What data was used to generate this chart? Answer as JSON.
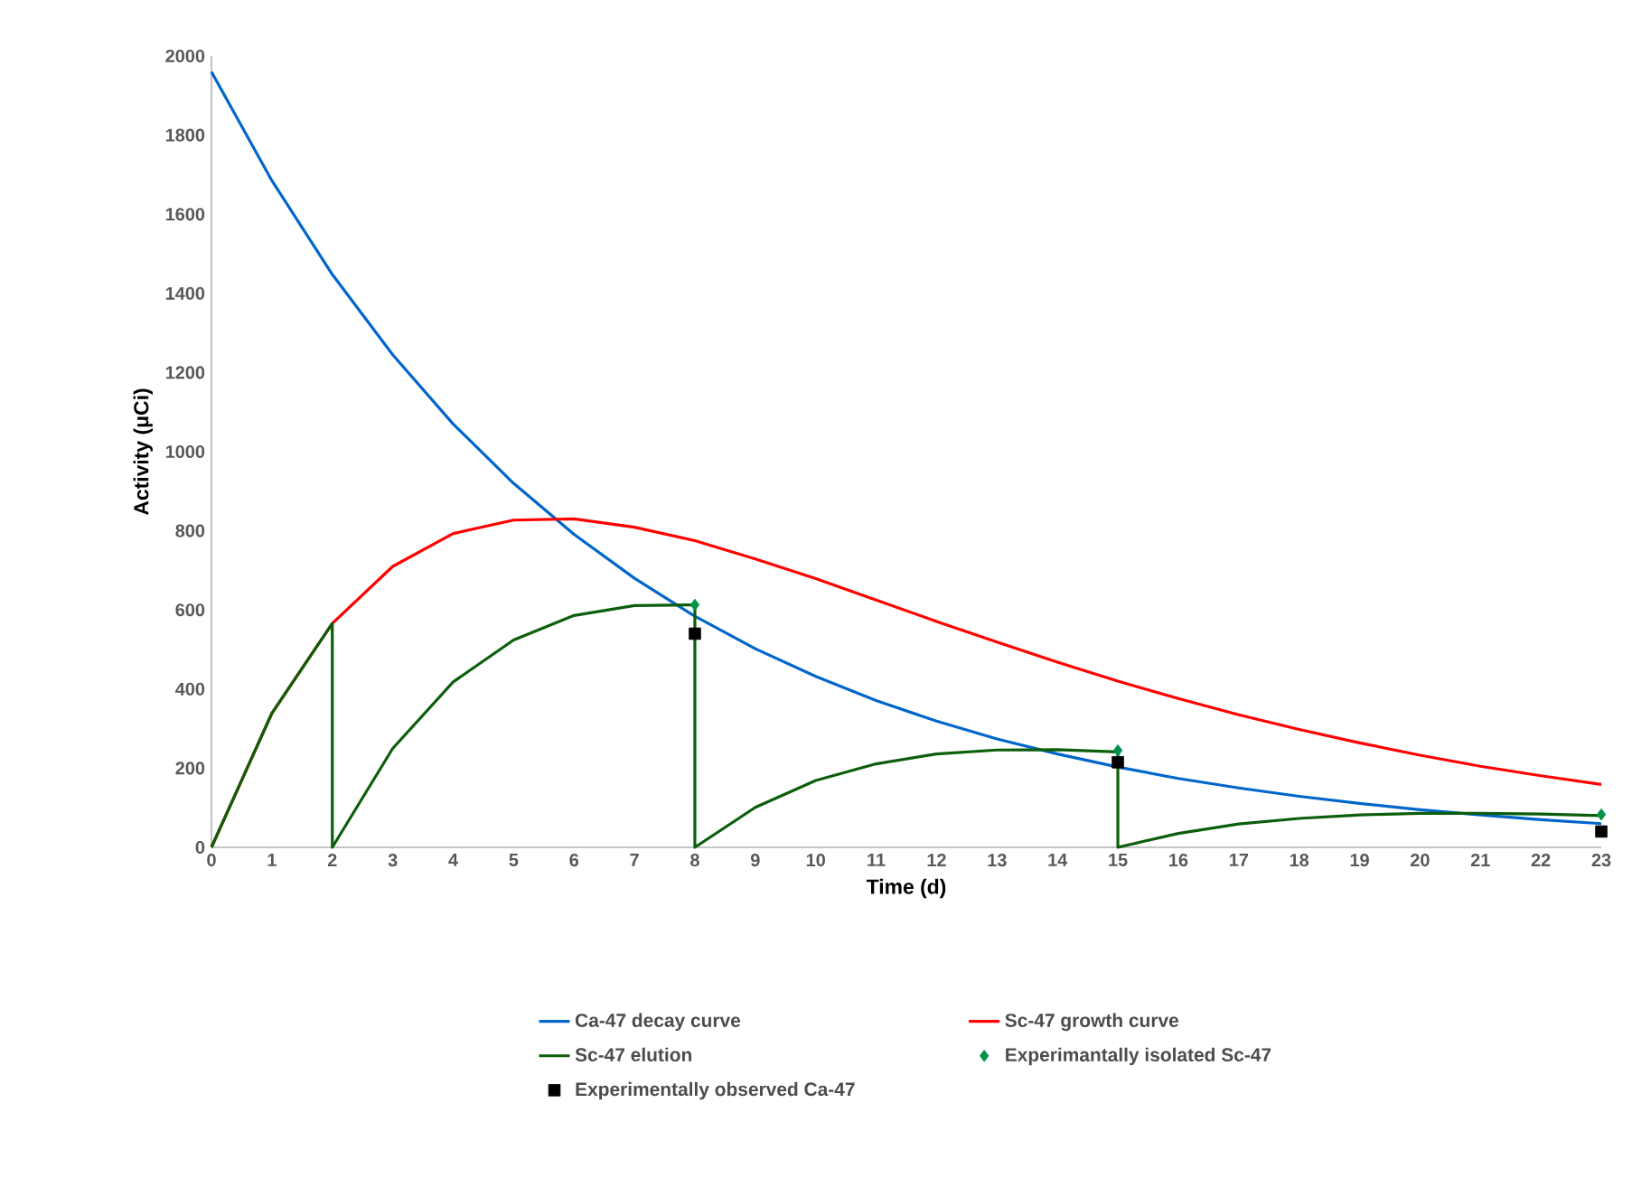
{
  "chart_data": {
    "type": "line",
    "xlabel": "Time (d)",
    "ylabel": "Activity (μCi)",
    "xlim": [
      0,
      23
    ],
    "xticks": [
      0,
      1,
      2,
      3,
      4,
      5,
      6,
      7,
      8,
      9,
      10,
      11,
      12,
      13,
      14,
      15,
      16,
      17,
      18,
      19,
      20,
      21,
      22,
      23
    ],
    "ylim": [
      0,
      2000
    ],
    "yticks": [
      0,
      200,
      400,
      600,
      800,
      1000,
      1200,
      1400,
      1600,
      1800,
      2000
    ],
    "legend": "bottom",
    "grid": false,
    "series": [
      {
        "name": "Ca-47 decay curve",
        "color": "#0066cc",
        "marker": "none",
        "line_style": "solid",
        "x": [
          0,
          1,
          2,
          3,
          4,
          5,
          6,
          7,
          8,
          9,
          10,
          11,
          12,
          13,
          14,
          15,
          16,
          17,
          18,
          19,
          20,
          21,
          22,
          23
        ],
        "values": [
          1960,
          1685,
          1448,
          1245,
          1070,
          920,
          791,
          680,
          584,
          502,
          432,
          371,
          319,
          274,
          236,
          203,
          174,
          150,
          129,
          111,
          95,
          82,
          70,
          60
        ]
      },
      {
        "name": "Sc-47 growth curve",
        "color": "#ff0000",
        "marker": "none",
        "line_style": "solid",
        "x": [
          0,
          1,
          2,
          3,
          4,
          5,
          6,
          7,
          8,
          9,
          10,
          11,
          12,
          13,
          14,
          15,
          16,
          17,
          18,
          19,
          20,
          21,
          22,
          23
        ],
        "values": [
          0,
          339,
          566,
          710,
          793,
          827,
          830,
          809,
          775,
          729,
          679,
          625,
          571,
          519,
          468,
          420,
          376,
          335,
          298,
          264,
          233,
          205,
          181,
          159
        ]
      },
      {
        "name": "Sc-47 elution",
        "color": "#0b5e0b",
        "marker": "none",
        "line_style": "solid",
        "x": [
          0,
          1,
          2,
          2,
          3,
          4,
          5,
          6,
          7,
          8,
          8,
          9,
          10,
          11,
          12,
          13,
          14,
          15,
          15,
          16,
          17,
          18,
          19,
          20,
          21,
          22,
          23
        ],
        "values": [
          0,
          339,
          566,
          0,
          250,
          418,
          524,
          586,
          611,
          613,
          0,
          101,
          169,
          211,
          236,
          246,
          247,
          241,
          0,
          35,
          59,
          73,
          82,
          86,
          86,
          84,
          80
        ]
      },
      {
        "name": "Experimantally isolated Sc-47",
        "type": "scatter",
        "color": "#00924a",
        "marker": "diamond",
        "x": [
          8,
          15,
          23
        ],
        "values": [
          613,
          245,
          83
        ]
      },
      {
        "name": "Experimentally observed Ca-47",
        "type": "scatter",
        "color": "#000000",
        "marker": "square",
        "x": [
          8,
          15,
          23
        ],
        "values": [
          540,
          215,
          40
        ]
      }
    ]
  }
}
